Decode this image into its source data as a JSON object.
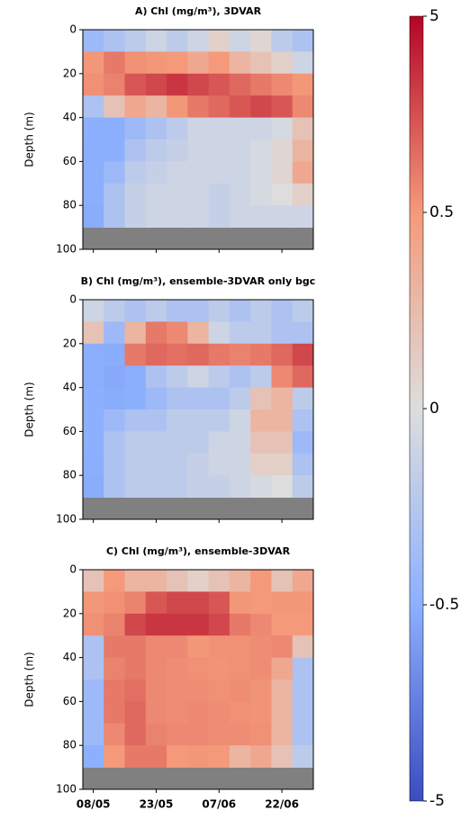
{
  "chart_data": [
    {
      "type": "heatmap",
      "title": "A) Chl (mg/m³), 3DVAR",
      "ylabel": "Depth (m)",
      "x": [
        0,
        5,
        10,
        15,
        20,
        25,
        30,
        35,
        40,
        45,
        50
      ],
      "y": [
        5,
        15,
        25,
        35,
        45,
        55,
        65,
        75,
        85,
        95
      ],
      "xlim": [
        -2.5,
        52.5
      ],
      "ylim": [
        100,
        0
      ],
      "yticks": [
        0,
        20,
        40,
        60,
        80,
        100
      ],
      "xticks": [
        0,
        15,
        30,
        45
      ],
      "z": [
        [
          -0.4,
          -0.3,
          -0.2,
          -0.1,
          -0.2,
          -0.1,
          0.1,
          -0.1,
          0.05,
          -0.2,
          -0.3
        ],
        [
          0.6,
          1.5,
          0.8,
          0.6,
          0.5,
          0.4,
          0.5,
          0.3,
          0.2,
          0.1,
          -0.1
        ],
        [
          0.8,
          1.2,
          2.5,
          3,
          3.5,
          3,
          2.5,
          2,
          1.5,
          1,
          0.6
        ],
        [
          -0.3,
          0.2,
          0.4,
          0.3,
          0.6,
          1.5,
          2,
          2.5,
          3,
          2.5,
          1
        ],
        [
          -0.5,
          -0.6,
          -0.4,
          -0.3,
          -0.2,
          -0.1,
          -0.1,
          -0.1,
          -0.1,
          -0.05,
          0.2
        ],
        [
          -0.6,
          -0.5,
          -0.3,
          -0.2,
          -0.15,
          -0.1,
          -0.1,
          -0.1,
          -0.05,
          0.05,
          0.3
        ],
        [
          -0.6,
          -0.4,
          -0.2,
          -0.15,
          -0.1,
          -0.1,
          -0.1,
          -0.1,
          -0.05,
          0.05,
          0.4
        ],
        [
          -0.6,
          -0.3,
          -0.15,
          -0.1,
          -0.1,
          -0.1,
          -0.15,
          -0.1,
          -0.05,
          0,
          0.1
        ],
        [
          -0.7,
          -0.3,
          -0.15,
          -0.1,
          -0.1,
          -0.1,
          -0.15,
          -0.1,
          -0.1,
          -0.1,
          -0.1
        ],
        [
          null,
          null,
          null,
          null,
          null,
          null,
          null,
          null,
          null,
          null,
          null
        ]
      ]
    },
    {
      "type": "heatmap",
      "title": "B) Chl (mg/m³), ensemble-3DVAR only bgc",
      "ylabel": "Depth (m)",
      "x": [
        0,
        5,
        10,
        15,
        20,
        25,
        30,
        35,
        40,
        45,
        50
      ],
      "y": [
        5,
        15,
        25,
        35,
        45,
        55,
        65,
        75,
        85,
        95
      ],
      "xlim": [
        -2.5,
        52.5
      ],
      "ylim": [
        100,
        0
      ],
      "yticks": [
        0,
        20,
        40,
        60,
        80,
        100
      ],
      "xticks": [
        0,
        15,
        30,
        45
      ],
      "z": [
        [
          -0.1,
          -0.2,
          -0.3,
          -0.2,
          -0.3,
          -0.3,
          -0.2,
          -0.3,
          -0.2,
          -0.3,
          -0.2
        ],
        [
          0.2,
          -0.4,
          0.3,
          1.5,
          1,
          0.3,
          -0.1,
          -0.2,
          -0.2,
          -0.3,
          -0.3
        ],
        [
          -0.6,
          -0.7,
          1.5,
          2,
          1.8,
          2,
          1.5,
          1.2,
          1.5,
          2,
          3
        ],
        [
          -0.6,
          -0.8,
          -0.6,
          -0.3,
          -0.2,
          -0.1,
          -0.2,
          -0.3,
          -0.2,
          1,
          2
        ],
        [
          -0.5,
          -0.7,
          -0.5,
          -0.4,
          -0.3,
          -0.3,
          -0.3,
          -0.2,
          0.2,
          0.3,
          -0.2
        ],
        [
          -0.5,
          -0.4,
          -0.3,
          -0.3,
          -0.2,
          -0.2,
          -0.2,
          -0.1,
          0.3,
          0.3,
          -0.3
        ],
        [
          -0.5,
          -0.3,
          -0.2,
          -0.2,
          -0.2,
          -0.2,
          -0.1,
          -0.1,
          0.2,
          0.2,
          -0.4
        ],
        [
          -0.6,
          -0.3,
          -0.2,
          -0.2,
          -0.2,
          -0.15,
          -0.1,
          -0.1,
          0.1,
          0.1,
          -0.3
        ],
        [
          -0.7,
          -0.3,
          -0.2,
          -0.2,
          -0.2,
          -0.15,
          -0.15,
          -0.1,
          -0.05,
          0,
          -0.2
        ],
        [
          null,
          null,
          null,
          null,
          null,
          null,
          null,
          null,
          null,
          null,
          null
        ]
      ]
    },
    {
      "type": "heatmap",
      "title": "C) Chl (mg/m³), ensemble-3DVAR",
      "ylabel": "Depth (m)",
      "x": [
        0,
        5,
        10,
        15,
        20,
        25,
        30,
        35,
        40,
        45,
        50
      ],
      "y": [
        5,
        15,
        25,
        35,
        45,
        55,
        65,
        75,
        85,
        95
      ],
      "xlim": [
        -2.5,
        52.5
      ],
      "ylim": [
        100,
        0
      ],
      "yticks": [
        0,
        20,
        40,
        60,
        80,
        100
      ],
      "xticks": [
        {
          "value": 0,
          "label": "08/05"
        },
        {
          "value": 15,
          "label": "23/05"
        },
        {
          "value": 30,
          "label": "07/06"
        },
        {
          "value": 45,
          "label": "22/06"
        }
      ],
      "z": [
        [
          0.2,
          0.5,
          0.3,
          0.3,
          0.2,
          0.1,
          0.2,
          0.3,
          0.5,
          0.2,
          0.4
        ],
        [
          0.6,
          0.8,
          1.2,
          2.5,
          3,
          3,
          2.5,
          0.6,
          0.5,
          0.6,
          0.6
        ],
        [
          0.8,
          1.2,
          3,
          3.5,
          3.5,
          3.5,
          3,
          1.5,
          1,
          0.5,
          0.5
        ],
        [
          -0.3,
          1.5,
          1.5,
          1,
          1,
          0.6,
          0.8,
          0.8,
          0.9,
          1,
          0.2
        ],
        [
          -0.3,
          1.2,
          1.5,
          1,
          0.9,
          0.8,
          0.7,
          0.8,
          0.9,
          0.4,
          -0.3
        ],
        [
          -0.4,
          1.5,
          1.8,
          1,
          0.9,
          0.9,
          0.8,
          0.9,
          0.7,
          0.3,
          -0.3
        ],
        [
          -0.4,
          1.5,
          2,
          1,
          0.9,
          1,
          0.9,
          0.8,
          0.7,
          0.3,
          -0.3
        ],
        [
          -0.4,
          1,
          2,
          1.2,
          1,
          1,
          0.9,
          0.9,
          0.8,
          0.3,
          -0.3
        ],
        [
          -0.5,
          0.5,
          1.5,
          1.5,
          0.5,
          0.6,
          0.5,
          0.3,
          0.4,
          0.2,
          -0.2
        ],
        [
          null,
          null,
          null,
          null,
          null,
          null,
          null,
          null,
          null,
          null,
          null
        ]
      ]
    }
  ],
  "colorbar": {
    "scale": "symlog",
    "ticks": [
      -5,
      -0.5,
      0,
      0.5,
      5
    ],
    "colors": [
      "#3b4cc0",
      "#8db0fe",
      "#dddddd",
      "#f49a7b",
      "#b40426"
    ]
  }
}
